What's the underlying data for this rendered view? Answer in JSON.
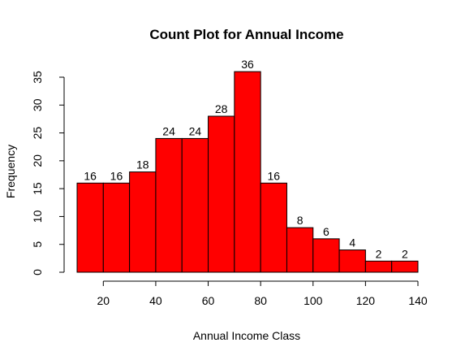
{
  "chart_data": {
    "type": "bar",
    "title": "Count Plot for Annual Income",
    "xlabel": "Annual Income Class",
    "ylabel": "Frequency",
    "bin_edges": [
      10,
      20,
      30,
      40,
      50,
      60,
      70,
      80,
      90,
      100,
      110,
      120,
      130,
      140
    ],
    "values": [
      16,
      16,
      18,
      24,
      24,
      28,
      36,
      16,
      8,
      6,
      4,
      2,
      2
    ],
    "data_labels": [
      "16",
      "16",
      "18",
      "24",
      "24",
      "28",
      "36",
      "16",
      "8",
      "6",
      "4",
      "2",
      "2"
    ],
    "xticks": [
      20,
      40,
      60,
      80,
      100,
      120,
      140
    ],
    "xtick_labels": [
      "20",
      "40",
      "60",
      "80",
      "100",
      "120",
      "140"
    ],
    "yticks": [
      0,
      5,
      10,
      15,
      20,
      25,
      30,
      35
    ],
    "ytick_labels": [
      "0",
      "5",
      "10",
      "15",
      "20",
      "25",
      "30",
      "35"
    ],
    "xlim": [
      10,
      140
    ],
    "ylim": [
      0,
      35
    ],
    "bar_color": "#ff0000",
    "bar_edge_color": "#000000",
    "grid": false,
    "legend": "none"
  }
}
